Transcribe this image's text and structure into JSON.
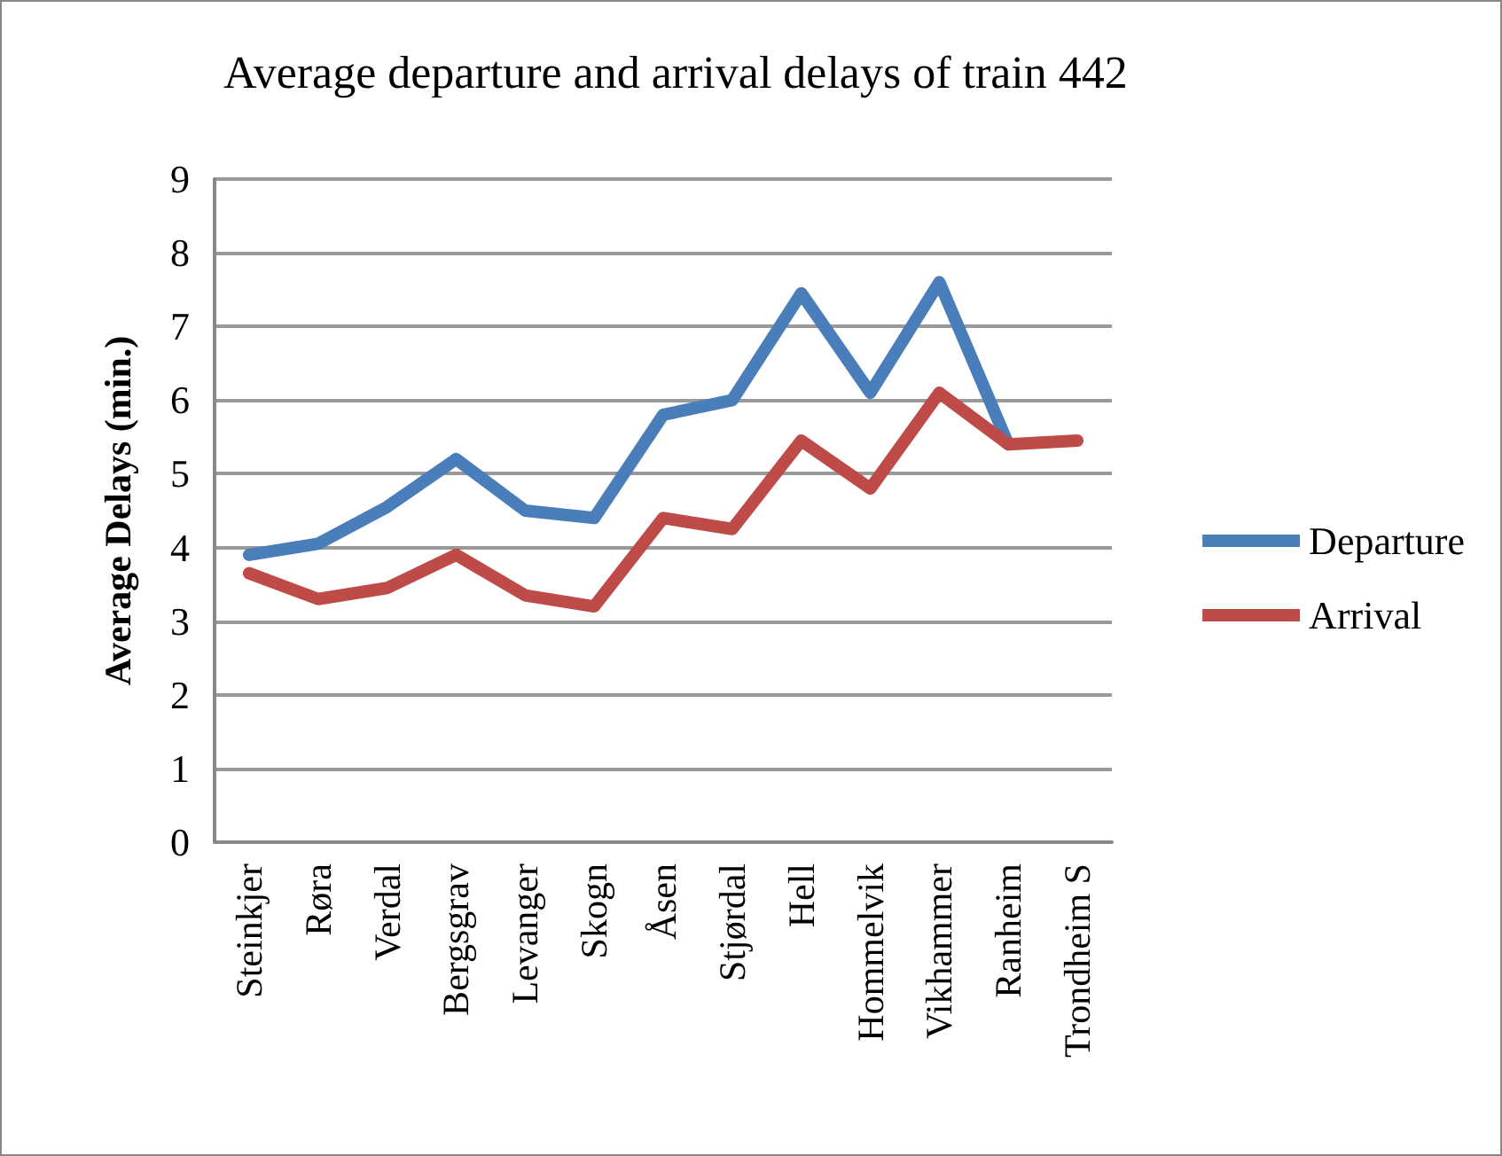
{
  "chart_data": {
    "type": "line",
    "title": "Average departure and arrival delays of train 442",
    "ylabel": "Average Delays (min.)",
    "categories": [
      "Steinkjer",
      "Røra",
      "Verdal",
      "Bergsgrav",
      "Levanger",
      "Skogn",
      "Åsen",
      "Stjørdal",
      "Hell",
      "Hommelvik",
      "Vikhammer",
      "Ranheim",
      "Trondheim S"
    ],
    "series": [
      {
        "name": "Departure",
        "color": "#4a7ebb",
        "values": [
          3.9,
          4.05,
          4.55,
          5.2,
          4.5,
          4.4,
          5.8,
          6.0,
          7.45,
          6.1,
          7.6,
          5.4,
          null
        ]
      },
      {
        "name": "Arrival",
        "color": "#be4b48",
        "values": [
          3.65,
          3.3,
          3.45,
          3.9,
          3.35,
          3.2,
          4.4,
          4.25,
          5.45,
          4.8,
          6.1,
          5.4,
          5.45
        ]
      }
    ],
    "ylim": [
      0,
      9
    ],
    "yticks": [
      0,
      1,
      2,
      3,
      4,
      5,
      6,
      7,
      8,
      9
    ],
    "grid": "y",
    "legend": "right",
    "marker": "none",
    "line_style": "solid"
  }
}
